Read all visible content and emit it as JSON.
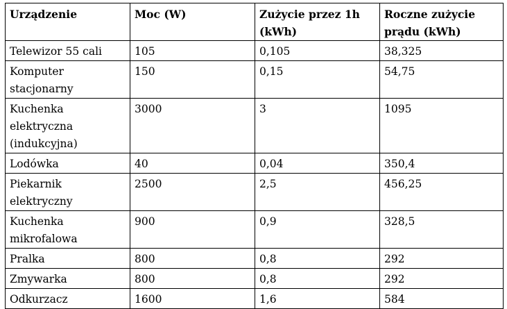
{
  "table": {
    "headers": [
      "Urządzenie",
      "Moc (W)",
      "Zużycie przez 1h (kWh)",
      "Roczne zużycie prądu (kWh)"
    ],
    "rows": [
      [
        "Telewizor 55 cali",
        "105",
        "0,105",
        "38,325"
      ],
      [
        "Komputer stacjonarny",
        "150",
        "0,15",
        "54,75"
      ],
      [
        "Kuchenka elektryczna (indukcyjna)",
        "3000",
        "3",
        "1095"
      ],
      [
        "Lodówka",
        "40",
        "0,04",
        "350,4"
      ],
      [
        "Piekarnik elektryczny",
        "2500",
        "2,5",
        "456,25"
      ],
      [
        "Kuchenka mikrofalowa",
        "900",
        "0,9",
        "328,5"
      ],
      [
        "Pralka",
        "800",
        "0,8",
        "292"
      ],
      [
        "Zmywarka",
        "800",
        "0,8",
        "292"
      ],
      [
        "Odkurzacz",
        "1600",
        "1,6",
        "584"
      ]
    ]
  }
}
